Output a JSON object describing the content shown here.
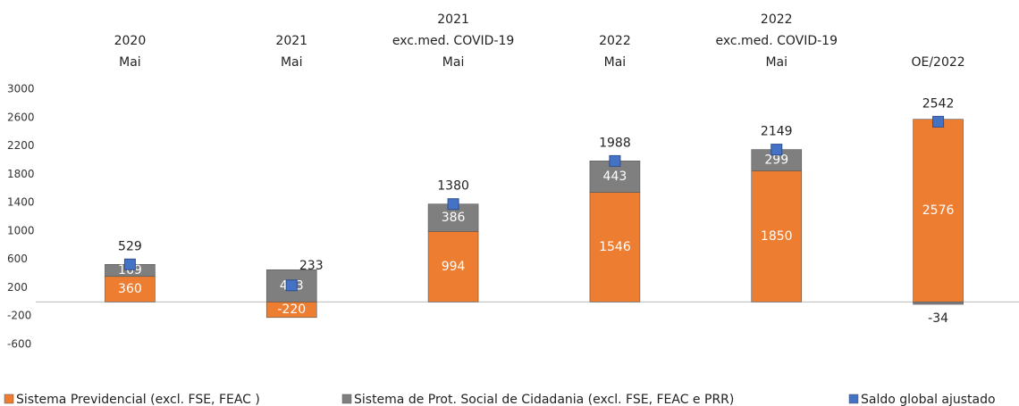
{
  "chart_data": {
    "type": "stacked_bar",
    "categories": [
      [
        "2020",
        "Mai"
      ],
      [
        "2021",
        "Mai"
      ],
      [
        "2021",
        "exc.med. COVID-19",
        "Mai"
      ],
      [
        "2022",
        "Mai"
      ],
      [
        "2022",
        "exc.med. COVID-19",
        "Mai"
      ],
      [
        "OE/2022"
      ]
    ],
    "series": [
      {
        "name": "Sistema Previdencial (excl. FSE, FEAC )",
        "color": "#ED7D31",
        "kind": "bar",
        "values": [
          360,
          -220,
          994,
          1546,
          1850,
          2576
        ]
      },
      {
        "name": "Sistema de Prot. Social de Cidadania (excl. FSE, FEAC e PRR)",
        "color": "#7F7F7F",
        "kind": "bar",
        "values": [
          169,
          453,
          386,
          443,
          299,
          -34
        ]
      },
      {
        "name": "Saldo global ajustado",
        "color": "#4472C4",
        "kind": "marker",
        "values": [
          529,
          233,
          1380,
          1988,
          2149,
          2542
        ]
      }
    ],
    "ylim": [
      -600,
      3000
    ],
    "yticks": [
      -600,
      -200,
      200,
      600,
      1000,
      1400,
      1800,
      2200,
      2600,
      3000
    ],
    "grid": false,
    "legend": "bottom"
  }
}
